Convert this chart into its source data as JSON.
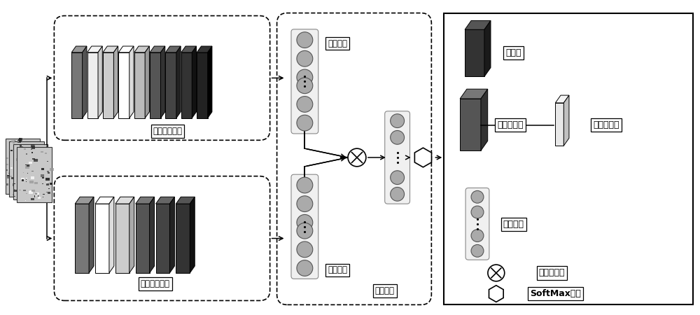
{
  "bg_color": "#ffffff",
  "labels": {
    "branch1": "火点评估分支",
    "branch2": "云水检测分支",
    "fire_feature": "火点特征",
    "cloud_feature": "云水特征",
    "fusion": "融合模块",
    "conv": "卷积块",
    "pixel_attn": "像素注意力",
    "band_attn": "波段注意力",
    "fc": "全连接层",
    "element_mult": "元素级乘法",
    "softmax": "SoftMax函数"
  },
  "top_blocks_colors": [
    [
      "#777777",
      "#555555",
      "#999999"
    ],
    [
      "#eeeeee",
      "#cccccc",
      "#f5f5f5"
    ],
    [
      "#cccccc",
      "#aaaaaa",
      "#dddddd"
    ],
    [
      "#ffffff",
      "#dddddd",
      "#ffffff"
    ],
    [
      "#bbbbbb",
      "#999999",
      "#cccccc"
    ],
    [
      "#555555",
      "#333333",
      "#777777"
    ],
    [
      "#444444",
      "#222222",
      "#666666"
    ],
    [
      "#333333",
      "#111111",
      "#555555"
    ],
    [
      "#222222",
      "#000000",
      "#333333"
    ]
  ],
  "bot_blocks_colors": [
    [
      "#777777",
      "#555555",
      "#999999"
    ],
    [
      "#ffffff",
      "#dddddd",
      "#ffffff"
    ],
    [
      "#cccccc",
      "#aaaaaa",
      "#dddddd"
    ],
    [
      "#555555",
      "#333333",
      "#777777"
    ],
    [
      "#444444",
      "#222222",
      "#666666"
    ],
    [
      "#333333",
      "#111111",
      "#555555"
    ]
  ]
}
